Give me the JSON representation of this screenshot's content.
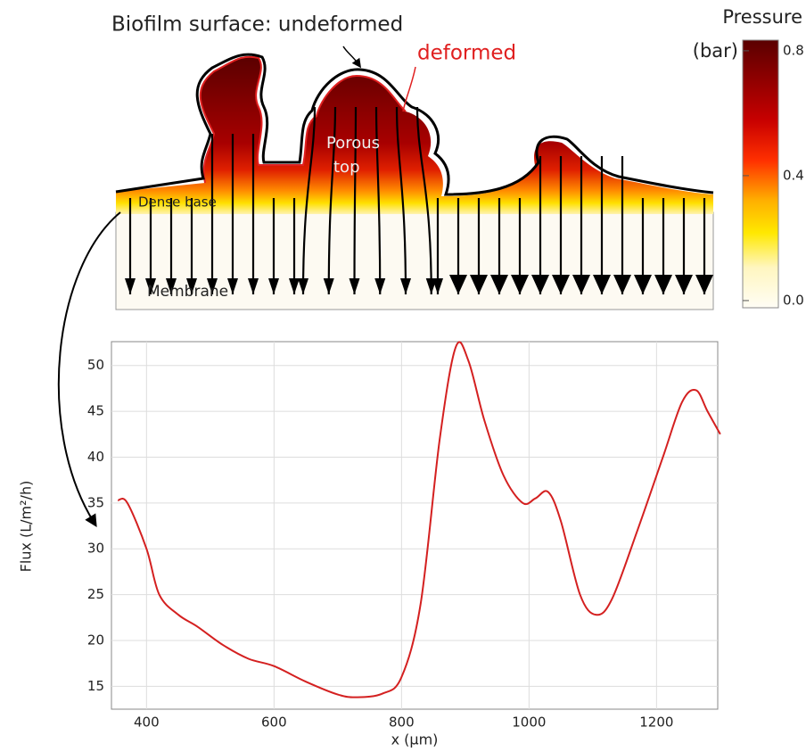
{
  "chart_data": {
    "type": "line",
    "xlabel": "x (µm)",
    "ylabel": "Flux (L/m²/h)",
    "x": [
      355,
      370,
      400,
      420,
      450,
      480,
      520,
      560,
      600,
      650,
      700,
      730,
      770,
      800,
      830,
      860,
      885,
      905,
      930,
      960,
      990,
      1010,
      1030,
      1050,
      1080,
      1105,
      1130,
      1170,
      1210,
      1240,
      1262,
      1280,
      1300
    ],
    "values": [
      35.3,
      35,
      30,
      25,
      22.8,
      21.5,
      19.5,
      18,
      17.2,
      15.5,
      14.1,
      13.8,
      14.2,
      16,
      24,
      42,
      52,
      50.5,
      44,
      38,
      35,
      35.5,
      36.2,
      33,
      25,
      22.8,
      24.5,
      32,
      40,
      46,
      47.3,
      45,
      42.5
    ],
    "color": "#d42020",
    "xlim": [
      345,
      1296
    ],
    "ylim": [
      12.5,
      52.6
    ],
    "xticks": [
      400,
      600,
      800,
      1000,
      1200
    ],
    "yticks": [
      15,
      20,
      25,
      30,
      35,
      40,
      45,
      50
    ],
    "grid": true
  },
  "colorbar": {
    "title_lines": [
      "Pressure",
      "(bar)"
    ],
    "lim": [
      -0.023,
      0.834
    ],
    "ticks": [
      {
        "value": 0,
        "label": "0.0"
      },
      0.4,
      0.8
    ]
  },
  "diagram": {
    "surface_label": "Biofilm surface: undeformed",
    "deformed_label": "deformed",
    "porous_label": [
      "Porous",
      "top"
    ],
    "dense_label": "Dense base",
    "membrane_label": "Membrane"
  }
}
